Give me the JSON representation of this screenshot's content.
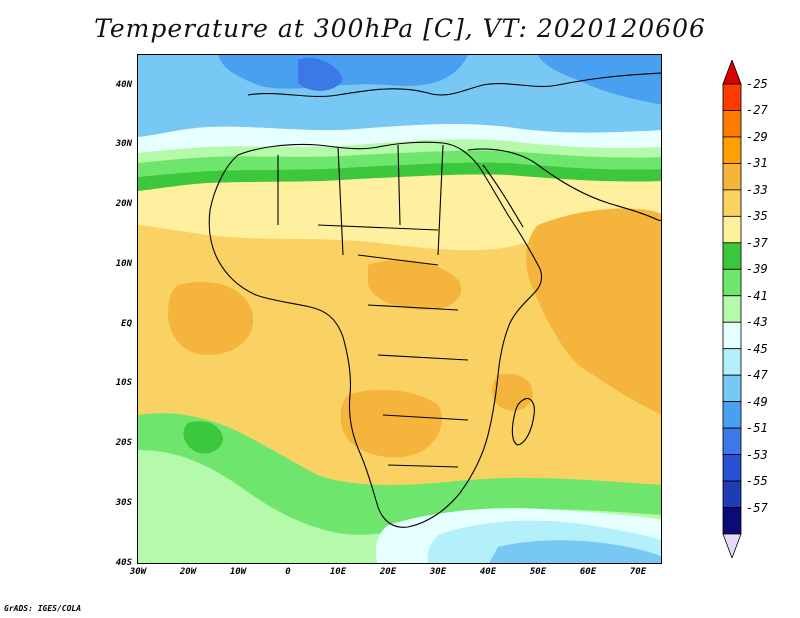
{
  "title": "Temperature at 300hPa [C], VT: 2020120606",
  "credit": "GrADS: IGES/COLA",
  "map": {
    "lat_labels": [
      "40N",
      "30N",
      "20N",
      "10N",
      "EQ",
      "10S",
      "20S",
      "30S",
      "40S"
    ],
    "lon_labels": [
      "30W",
      "20W",
      "10W",
      "0",
      "10E",
      "20E",
      "30E",
      "40E",
      "50E",
      "60E",
      "70E"
    ]
  },
  "colorbar": {
    "labels": [
      "-25",
      "-27",
      "-29",
      "-31",
      "-33",
      "-35",
      "-37",
      "-39",
      "-41",
      "-43",
      "-45",
      "-47",
      "-49",
      "-51",
      "-53",
      "-55",
      "-57"
    ],
    "colors": [
      "#ff3c00",
      "#ff7d00",
      "#ffa000",
      "#f5b43c",
      "#fad264",
      "#fff09f",
      "#3cc83c",
      "#6ee66e",
      "#b4faaa",
      "#e6ffff",
      "#b4f0fa",
      "#78c8f5",
      "#4aa0f0",
      "#3c78e6",
      "#2850d2",
      "#1e3cb4",
      "#0a0a78"
    ],
    "over_color": "#dc0000",
    "under_color": "#e6dcf5"
  }
}
